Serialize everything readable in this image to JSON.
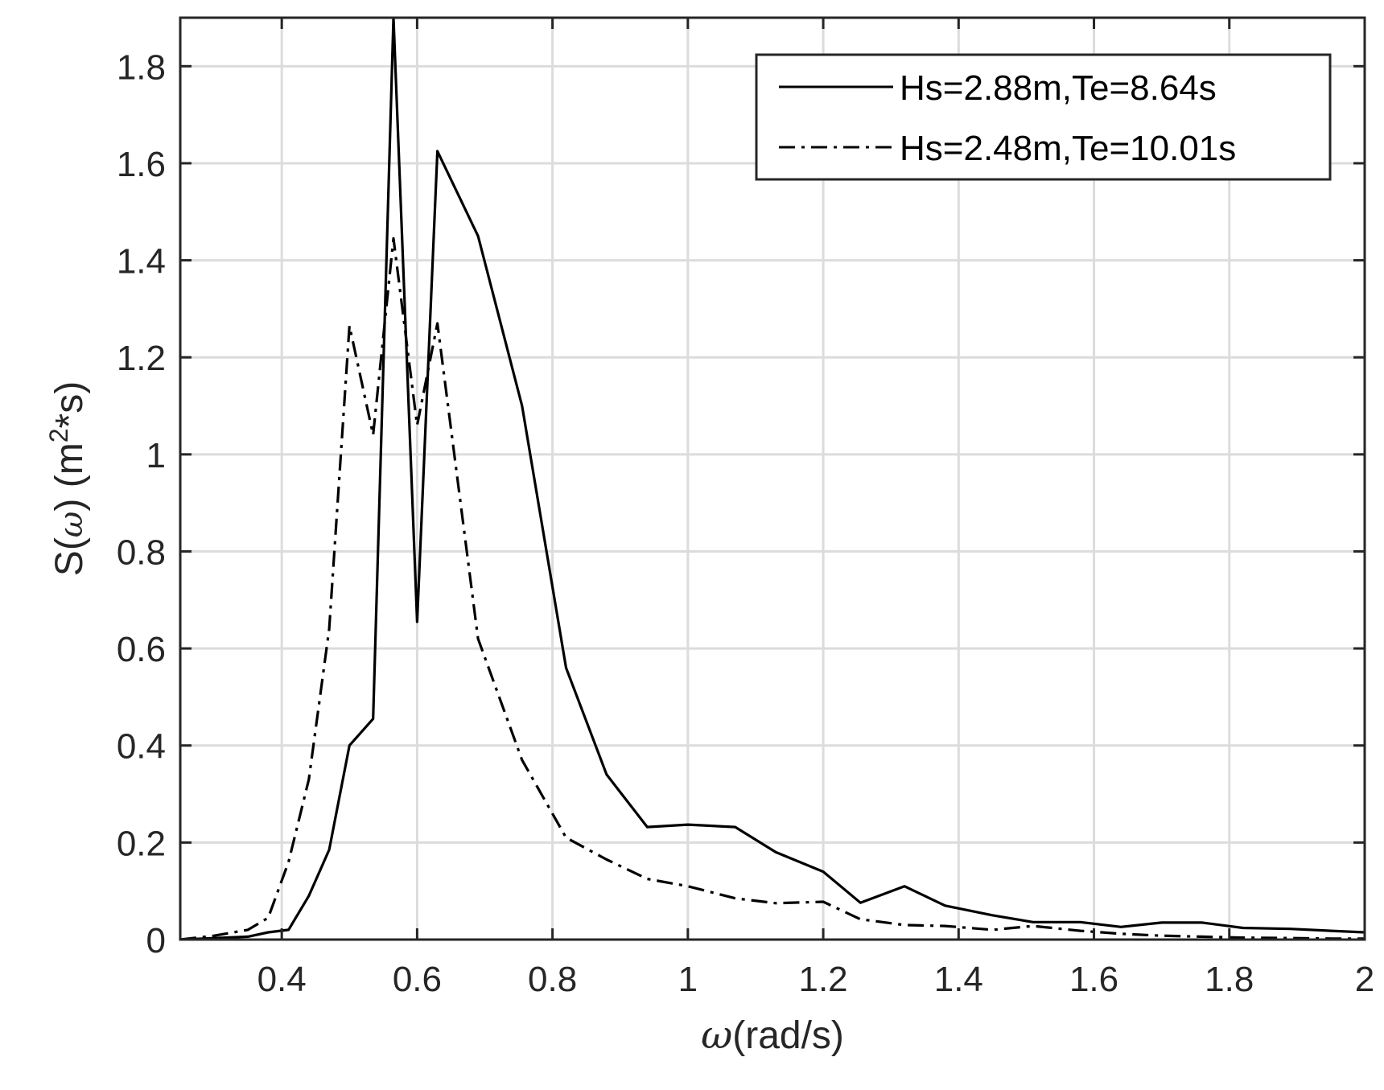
{
  "chart_data": {
    "type": "line",
    "title": "",
    "xlabel_symbol": "ω",
    "xlabel_unit": "(rad/s)",
    "ylabel_prefix": "S(",
    "ylabel_symbol": "ω",
    "ylabel_mid": ") (m",
    "ylabel_sup": "2",
    "ylabel_suffix": "*s)",
    "xlim": [
      0.25,
      2.0
    ],
    "ylim": [
      0,
      1.9
    ],
    "xticks": [
      0.4,
      0.6,
      0.8,
      1.0,
      1.2,
      1.4,
      1.6,
      1.8,
      2.0
    ],
    "xtick_labels": [
      "0.4",
      "0.6",
      "0.8",
      "1",
      "1.2",
      "1.4",
      "1.6",
      "1.8",
      "2"
    ],
    "yticks": [
      0,
      0.2,
      0.4,
      0.6,
      0.8,
      1.0,
      1.2,
      1.4,
      1.6,
      1.8
    ],
    "ytick_labels": [
      "0",
      "0.2",
      "0.4",
      "0.6",
      "0.8",
      "1",
      "1.2",
      "1.4",
      "1.6",
      "1.8"
    ],
    "grid": true,
    "legend_position": "top-right",
    "series": [
      {
        "name": "Hs=2.88m,Te=8.64s",
        "style": "solid",
        "color": "#000000",
        "x": [
          0.25,
          0.3,
          0.35,
          0.38,
          0.41,
          0.44,
          0.47,
          0.5,
          0.535,
          0.565,
          0.6,
          0.63,
          0.69,
          0.755,
          0.82,
          0.88,
          0.94,
          1.0,
          1.07,
          1.13,
          1.2,
          1.255,
          1.32,
          1.38,
          1.45,
          1.51,
          1.58,
          1.64,
          1.7,
          1.76,
          1.82,
          1.89,
          1.95,
          2.0
        ],
        "y": [
          0.0,
          0.003,
          0.006,
          0.015,
          0.02,
          0.09,
          0.185,
          0.4,
          0.455,
          1.9,
          0.655,
          1.625,
          1.45,
          1.1,
          0.56,
          0.34,
          0.232,
          0.237,
          0.232,
          0.18,
          0.14,
          0.076,
          0.11,
          0.07,
          0.05,
          0.036,
          0.036,
          0.026,
          0.035,
          0.035,
          0.024,
          0.022,
          0.018,
          0.015
        ]
      },
      {
        "name": "Hs=2.48m,Te=10.01s",
        "style": "dash-dot",
        "color": "#000000",
        "x": [
          0.25,
          0.3,
          0.35,
          0.38,
          0.41,
          0.44,
          0.47,
          0.5,
          0.535,
          0.565,
          0.6,
          0.63,
          0.69,
          0.755,
          0.82,
          0.88,
          0.94,
          1.0,
          1.07,
          1.13,
          1.2,
          1.255,
          1.32,
          1.38,
          1.45,
          1.51,
          1.58,
          1.64,
          1.7,
          1.76,
          1.82,
          1.89,
          1.95,
          2.0
        ],
        "y": [
          0.0,
          0.008,
          0.02,
          0.045,
          0.16,
          0.33,
          0.64,
          1.265,
          1.04,
          1.445,
          1.06,
          1.27,
          0.62,
          0.37,
          0.21,
          0.165,
          0.125,
          0.11,
          0.085,
          0.075,
          0.078,
          0.042,
          0.03,
          0.028,
          0.02,
          0.028,
          0.018,
          0.012,
          0.008,
          0.006,
          0.004,
          0.003,
          0.002,
          0.002
        ]
      }
    ]
  }
}
